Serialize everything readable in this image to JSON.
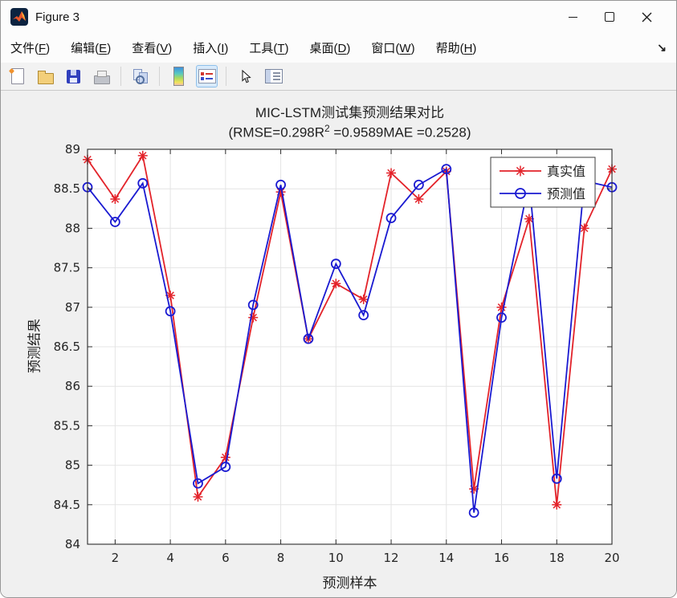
{
  "window": {
    "title": "Figure 3",
    "controls": [
      "minimize",
      "maximize",
      "close"
    ]
  },
  "menu_bar": {
    "items": [
      {
        "text": "文件",
        "mnemonic": "F"
      },
      {
        "text": "编辑",
        "mnemonic": "E"
      },
      {
        "text": "查看",
        "mnemonic": "V"
      },
      {
        "text": "插入",
        "mnemonic": "I"
      },
      {
        "text": "工具",
        "mnemonic": "T"
      },
      {
        "text": "桌面",
        "mnemonic": "D"
      },
      {
        "text": "窗口",
        "mnemonic": "W"
      },
      {
        "text": "帮助",
        "mnemonic": "H"
      }
    ],
    "dock_arrow": "↘"
  },
  "toolbar": {
    "icons": [
      {
        "name": "new-figure-icon"
      },
      {
        "name": "open-file-icon"
      },
      {
        "name": "save-figure-icon"
      },
      {
        "name": "print-figure-icon"
      },
      {
        "name": "link-plot-icon"
      },
      {
        "name": "insert-colorbar-icon"
      },
      {
        "name": "insert-legend-icon",
        "active": true
      },
      {
        "name": "edit-plot-icon"
      },
      {
        "name": "property-inspector-icon"
      }
    ]
  },
  "chart_data": {
    "type": "line",
    "title": "MIC-LSTM测试集预测结果对比",
    "subtitle_parts": {
      "pre": "(RMSE=0.298R",
      "sup": "2",
      "post": " =0.9589MAE =0.2528)"
    },
    "xlabel": "预测样本",
    "ylabel": "预测结果",
    "xlim": [
      1,
      20
    ],
    "ylim": [
      84,
      89
    ],
    "xticks": [
      2,
      4,
      6,
      8,
      10,
      12,
      14,
      16,
      18,
      20
    ],
    "yticks": [
      84,
      84.5,
      85,
      85.5,
      86,
      86.5,
      87,
      87.5,
      88,
      88.5,
      89
    ],
    "grid": true,
    "legend_position": "top-right",
    "x": [
      1,
      2,
      3,
      4,
      5,
      6,
      7,
      8,
      9,
      10,
      11,
      12,
      13,
      14,
      15,
      16,
      17,
      18,
      19,
      20
    ],
    "series": [
      {
        "name": "真实值",
        "color": "#e3232a",
        "marker": "asterisk",
        "values": [
          88.87,
          88.37,
          88.92,
          87.15,
          84.6,
          85.1,
          86.87,
          88.46,
          86.6,
          87.3,
          87.1,
          88.7,
          88.37,
          88.72,
          84.7,
          87.0,
          88.12,
          84.5,
          88.0,
          88.75
        ]
      },
      {
        "name": "预测值",
        "color": "#1a1ad1",
        "marker": "circle",
        "values": [
          88.52,
          88.08,
          88.57,
          86.95,
          84.77,
          84.98,
          87.03,
          88.55,
          86.6,
          87.55,
          86.9,
          88.13,
          88.55,
          88.75,
          84.4,
          86.87,
          88.6,
          84.83,
          88.6,
          88.52
        ]
      }
    ]
  }
}
